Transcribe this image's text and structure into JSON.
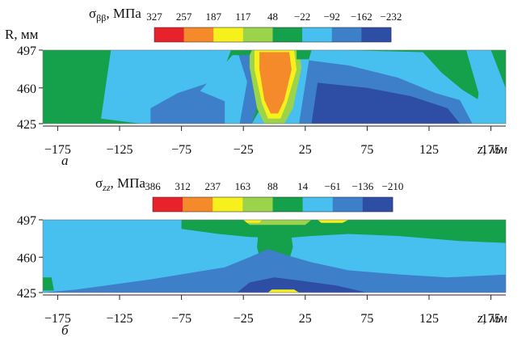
{
  "chart_data": [
    {
      "type": "heatmap",
      "panel_label": "а",
      "title_symbol": "σ",
      "title_subscript": "ββ",
      "title_unit": ", МПа",
      "ylabel": "R, мм",
      "xlabel": "z, мм",
      "xlim": [
        -187,
        187
      ],
      "ylim": [
        425,
        497
      ],
      "x_ticks": [
        "−175",
        "−125",
        "−75",
        "−25",
        "25",
        "75",
        "125",
        "175"
      ],
      "x_tick_values": [
        -175,
        -125,
        -75,
        -25,
        25,
        75,
        125,
        175
      ],
      "y_ticks": [
        "497",
        "460",
        "425"
      ],
      "y_tick_values": [
        497,
        460,
        425
      ],
      "colorbar": {
        "labels": [
          "327",
          "257",
          "187",
          "117",
          "48",
          "−22",
          "−92",
          "−162",
          "−232"
        ],
        "colors": [
          "#e8222b",
          "#f58a2a",
          "#f6f01c",
          "#9bd34a",
          "#15a04c",
          "#47c0ef",
          "#3d7fc9",
          "#2e4da5"
        ]
      },
      "background_level": "#15a04c",
      "regions": [
        {
          "level": "#47c0ef",
          "pts": [
            [
              -132,
              497
            ],
            [
              -140,
              430
            ],
            [
              -108,
              425
            ],
            [
              -55,
              425
            ],
            [
              -45,
              465
            ],
            [
              -35,
              497
            ]
          ]
        },
        {
          "level": "#3d7fc9",
          "pts": [
            [
              -100,
              425
            ],
            [
              -100,
              440
            ],
            [
              -78,
              455
            ],
            [
              -40,
              470
            ],
            [
              -32,
              497
            ],
            [
              -18,
              497
            ],
            [
              -10,
              460
            ],
            [
              -18,
              425
            ]
          ]
        },
        {
          "level": "#47c0ef",
          "pts": [
            [
              -30,
              497
            ],
            [
              -22,
              466
            ],
            [
              -28,
              425
            ],
            [
              -40,
              425
            ],
            [
              -40,
              447
            ],
            [
              -60,
              457
            ]
          ]
        },
        {
          "level": "#47c0ef",
          "pts": [
            [
              15,
              497
            ],
            [
              55,
              497
            ],
            [
              120,
              495
            ],
            [
              135,
              475
            ],
            [
              152,
              458
            ],
            [
              190,
              430
            ],
            [
              190,
              425
            ],
            [
              -18,
              425
            ]
          ]
        },
        {
          "level": "#3d7fc9",
          "pts": [
            [
              28,
              487
            ],
            [
              60,
              482
            ],
            [
              100,
              470
            ],
            [
              130,
              455
            ],
            [
              150,
              448
            ],
            [
              160,
              425
            ],
            [
              20,
              425
            ]
          ]
        },
        {
          "level": "#2e4da5",
          "pts": [
            [
              35,
              465
            ],
            [
              75,
              460
            ],
            [
              110,
              452
            ],
            [
              140,
              440
            ],
            [
              150,
              425
            ],
            [
              30,
              425
            ]
          ]
        },
        {
          "level": "#47c0ef",
          "pts": [
            [
              155,
              497
            ],
            [
              175,
              497
            ],
            [
              190,
              450
            ],
            [
              190,
              425
            ],
            [
              162,
              425
            ],
            [
              165,
              455
            ]
          ]
        },
        {
          "level": "#9bd34a",
          "pts": [
            [
              -20,
              497
            ],
            [
              20,
              497
            ],
            [
              22,
              480
            ],
            [
              15,
              440
            ],
            [
              8,
              425
            ],
            [
              -8,
              425
            ],
            [
              -14,
              440
            ],
            [
              -20,
              480
            ]
          ]
        },
        {
          "level": "#f6f01c",
          "pts": [
            [
              -16,
              497
            ],
            [
              16,
              497
            ],
            [
              18,
              478
            ],
            [
              10,
              445
            ],
            [
              5,
              430
            ],
            [
              -5,
              430
            ],
            [
              -10,
              445
            ],
            [
              -16,
              478
            ]
          ]
        },
        {
          "level": "#f58a2a",
          "pts": [
            [
              -12,
              495
            ],
            [
              12,
              495
            ],
            [
              14,
              478
            ],
            [
              8,
              448
            ],
            [
              3,
              435
            ],
            [
              -3,
              435
            ],
            [
              -8,
              448
            ],
            [
              -12,
              478
            ]
          ]
        },
        {
          "level": "#15a04c",
          "pts": [
            [
              -35,
              497
            ],
            [
              -34,
              492
            ],
            [
              -20,
              492
            ],
            [
              -18,
              497
            ]
          ]
        },
        {
          "level": "#15a04c",
          "pts": [
            [
              18,
              497
            ],
            [
              30,
              497
            ],
            [
              28,
              488
            ],
            [
              18,
              488
            ]
          ]
        }
      ]
    },
    {
      "type": "heatmap",
      "panel_label": "б",
      "title_symbol": "σ",
      "title_subscript": "zz",
      "title_unit": ", МПа",
      "ylabel": "",
      "xlabel": "z, мм",
      "xlim": [
        -187,
        187
      ],
      "ylim": [
        425,
        497
      ],
      "x_ticks": [
        "−175",
        "−125",
        "−75",
        "−25",
        "25",
        "75",
        "125",
        "175"
      ],
      "x_tick_values": [
        -175,
        -125,
        -75,
        -25,
        25,
        75,
        125,
        175
      ],
      "y_ticks": [
        "497",
        "460",
        "425"
      ],
      "y_tick_values": [
        497,
        460,
        425
      ],
      "colorbar": {
        "labels": [
          "386",
          "312",
          "237",
          "163",
          "88",
          "14",
          "−61",
          "−136",
          "−210"
        ],
        "colors": [
          "#e8222b",
          "#f58a2a",
          "#f6f01c",
          "#9bd34a",
          "#15a04c",
          "#47c0ef",
          "#3d7fc9",
          "#2e4da5"
        ]
      },
      "background_level": "#47c0ef",
      "regions": [
        {
          "level": "#15a04c",
          "pts": [
            [
              -75,
              497
            ],
            [
              190,
              497
            ],
            [
              190,
              474
            ],
            [
              150,
              476
            ],
            [
              100,
              481
            ],
            [
              60,
              483
            ],
            [
              30,
              481
            ],
            [
              10,
              479
            ],
            [
              -20,
              480
            ],
            [
              -45,
              483
            ],
            [
              -75,
              488
            ]
          ]
        },
        {
          "level": "#15a04c",
          "pts": [
            [
              -12,
              497
            ],
            [
              12,
              497
            ],
            [
              15,
              470
            ],
            [
              8,
              440
            ],
            [
              0,
              428
            ],
            [
              -8,
              440
            ],
            [
              -14,
              470
            ]
          ]
        },
        {
          "level": "#15a04c",
          "pts": [
            [
              -187,
              440
            ],
            [
              -187,
              427
            ],
            [
              -178,
              427
            ],
            [
              -180,
              440
            ]
          ]
        },
        {
          "level": "#9bd34a",
          "pts": [
            [
              -25,
              497
            ],
            [
              30,
              497
            ],
            [
              25,
              492
            ],
            [
              -20,
              492
            ]
          ]
        },
        {
          "level": "#f6f01c",
          "pts": [
            [
              -25,
              497
            ],
            [
              -10,
              497
            ],
            [
              -12,
              494
            ],
            [
              -22,
              494
            ]
          ]
        },
        {
          "level": "#f6f01c",
          "pts": [
            [
              35,
              497
            ],
            [
              60,
              497
            ],
            [
              55,
              494
            ],
            [
              38,
              494
            ]
          ]
        },
        {
          "level": "#3d7fc9",
          "pts": [
            [
              -187,
              425
            ],
            [
              190,
              425
            ],
            [
              190,
              443
            ],
            [
              140,
              440
            ],
            [
              100,
              443
            ],
            [
              60,
              447
            ],
            [
              30,
              455
            ],
            [
              10,
              462
            ],
            [
              -5,
              468
            ],
            [
              -20,
              460
            ],
            [
              -40,
              450
            ],
            [
              -55,
              447
            ],
            [
              -75,
              443
            ],
            [
              -100,
              438
            ],
            [
              -130,
              433
            ],
            [
              -160,
              428
            ]
          ]
        },
        {
          "level": "#2e4da5",
          "pts": [
            [
              -30,
              425
            ],
            [
              75,
              425
            ],
            [
              50,
              432
            ],
            [
              20,
              437
            ],
            [
              0,
              440
            ],
            [
              -20,
              435
            ]
          ]
        },
        {
          "level": "#f6f01c",
          "pts": [
            [
              -5,
              425
            ],
            [
              20,
              425
            ],
            [
              16,
              428
            ],
            [
              -2,
              428
            ]
          ]
        }
      ]
    }
  ]
}
